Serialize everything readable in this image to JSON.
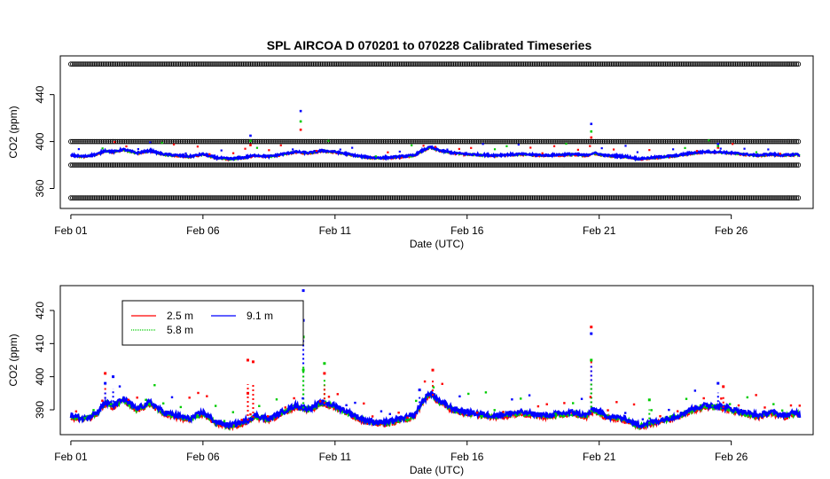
{
  "chart_data": [
    {
      "type": "line",
      "title": "SPL   AIRCOA  D    070201  to  070228   Calibrated Timeseries",
      "xlabel": "Date (UTC)",
      "ylabel": "CO2 (ppm)",
      "x_ticks": [
        "Feb 01",
        "Feb 06",
        "Feb 11",
        "Feb 16",
        "Feb 21",
        "Feb 26"
      ],
      "x_tick_days": [
        0,
        5,
        10,
        15,
        20,
        25
      ],
      "xlim_days": [
        -0.4,
        28.1
      ],
      "y_ticks": [
        360,
        400,
        440
      ],
      "ylim": [
        343,
        473
      ],
      "calibration_levels": [
        352,
        380,
        400,
        466
      ],
      "series": [
        {
          "name": "2.5 m",
          "color": "#ff0000",
          "base": 389
        },
        {
          "name": "5.8 m",
          "color": "#00cc00",
          "base": 389
        },
        {
          "name": "9.1 m",
          "color": "#0000ff",
          "base": 389
        }
      ],
      "spikes": [
        {
          "day": 6.8,
          "value": 405
        },
        {
          "day": 8.7,
          "value": 426
        },
        {
          "day": 19.7,
          "value": 415
        },
        {
          "day": 24.5,
          "value": 398
        }
      ]
    },
    {
      "type": "line",
      "title": "",
      "xlabel": "Date (UTC)",
      "ylabel": "CO2 (ppm)",
      "x_ticks": [
        "Feb 01",
        "Feb 06",
        "Feb 11",
        "Feb 16",
        "Feb 21",
        "Feb 26"
      ],
      "x_tick_days": [
        0,
        5,
        10,
        15,
        20,
        25
      ],
      "xlim_days": [
        -0.4,
        28.1
      ],
      "y_ticks": [
        390,
        400,
        410,
        420
      ],
      "ylim": [
        382.5,
        427.5
      ],
      "legend": {
        "placement": "top-left",
        "entries": [
          "2.5 m",
          "5.8 m",
          "9.1 m"
        ]
      },
      "series": [
        {
          "name": "2.5 m",
          "color": "#ff0000"
        },
        {
          "name": "5.8 m",
          "color": "#00cc00"
        },
        {
          "name": "9.1 m",
          "color": "#0000ff"
        }
      ],
      "profile_days": [
        0,
        0.5,
        1,
        1.3,
        1.6,
        2,
        2.5,
        3,
        3.5,
        4,
        4.5,
        5,
        5.5,
        6,
        6.5,
        7,
        7.5,
        8,
        8.5,
        9,
        9.5,
        10,
        10.5,
        11,
        11.5,
        12,
        12.5,
        13,
        13.3,
        13.6,
        14,
        14.5,
        15,
        16,
        17,
        18,
        19,
        19.5,
        19.8,
        20.2,
        21,
        21.5,
        22,
        22.5,
        23,
        23.5,
        24,
        24.5,
        25,
        25.5,
        26,
        26.5,
        27,
        27.5,
        27.6
      ],
      "profile_values": [
        388,
        387,
        389,
        392,
        391,
        393,
        390,
        392,
        389,
        388,
        387,
        389,
        386,
        385,
        386,
        388,
        387,
        389,
        391,
        390,
        392,
        391,
        389,
        387,
        386,
        386,
        387,
        388,
        392,
        395,
        392,
        390,
        389,
        388,
        389,
        388,
        389,
        388,
        390,
        388,
        387,
        385,
        386,
        387,
        388,
        390,
        391,
        391,
        390,
        389,
        388,
        389,
        388,
        389,
        388
      ],
      "spikes": [
        {
          "day": 1.3,
          "value": 401,
          "series": "2.5 m"
        },
        {
          "day": 1.3,
          "value": 398,
          "series": "9.1 m"
        },
        {
          "day": 1.6,
          "value": 400,
          "series": "9.1 m"
        },
        {
          "day": 6.7,
          "value": 405,
          "series": "2.5 m"
        },
        {
          "day": 6.9,
          "value": 404.5,
          "series": "2.5 m"
        },
        {
          "day": 6.7,
          "value": 395,
          "series": "2.5 m"
        },
        {
          "day": 8.8,
          "value": 426,
          "series": "9.1 m"
        },
        {
          "day": 8.8,
          "value": 417,
          "series": "9.1 m"
        },
        {
          "day": 8.8,
          "value": 412,
          "series": "5.8 m"
        },
        {
          "day": 8.8,
          "value": 402,
          "series": "5.8 m"
        },
        {
          "day": 9.6,
          "value": 404,
          "series": "5.8 m"
        },
        {
          "day": 9.6,
          "value": 401,
          "series": "2.5 m"
        },
        {
          "day": 13.2,
          "value": 396,
          "series": "9.1 m"
        },
        {
          "day": 13.7,
          "value": 402,
          "series": "2.5 m"
        },
        {
          "day": 19.7,
          "value": 415,
          "series": "2.5 m"
        },
        {
          "day": 19.7,
          "value": 413,
          "series": "9.1 m"
        },
        {
          "day": 19.7,
          "value": 405,
          "series": "5.8 m"
        },
        {
          "day": 21.9,
          "value": 393,
          "series": "5.8 m"
        },
        {
          "day": 24.5,
          "value": 398,
          "series": "9.1 m"
        },
        {
          "day": 24.7,
          "value": 397,
          "series": "2.5 m"
        }
      ]
    }
  ]
}
